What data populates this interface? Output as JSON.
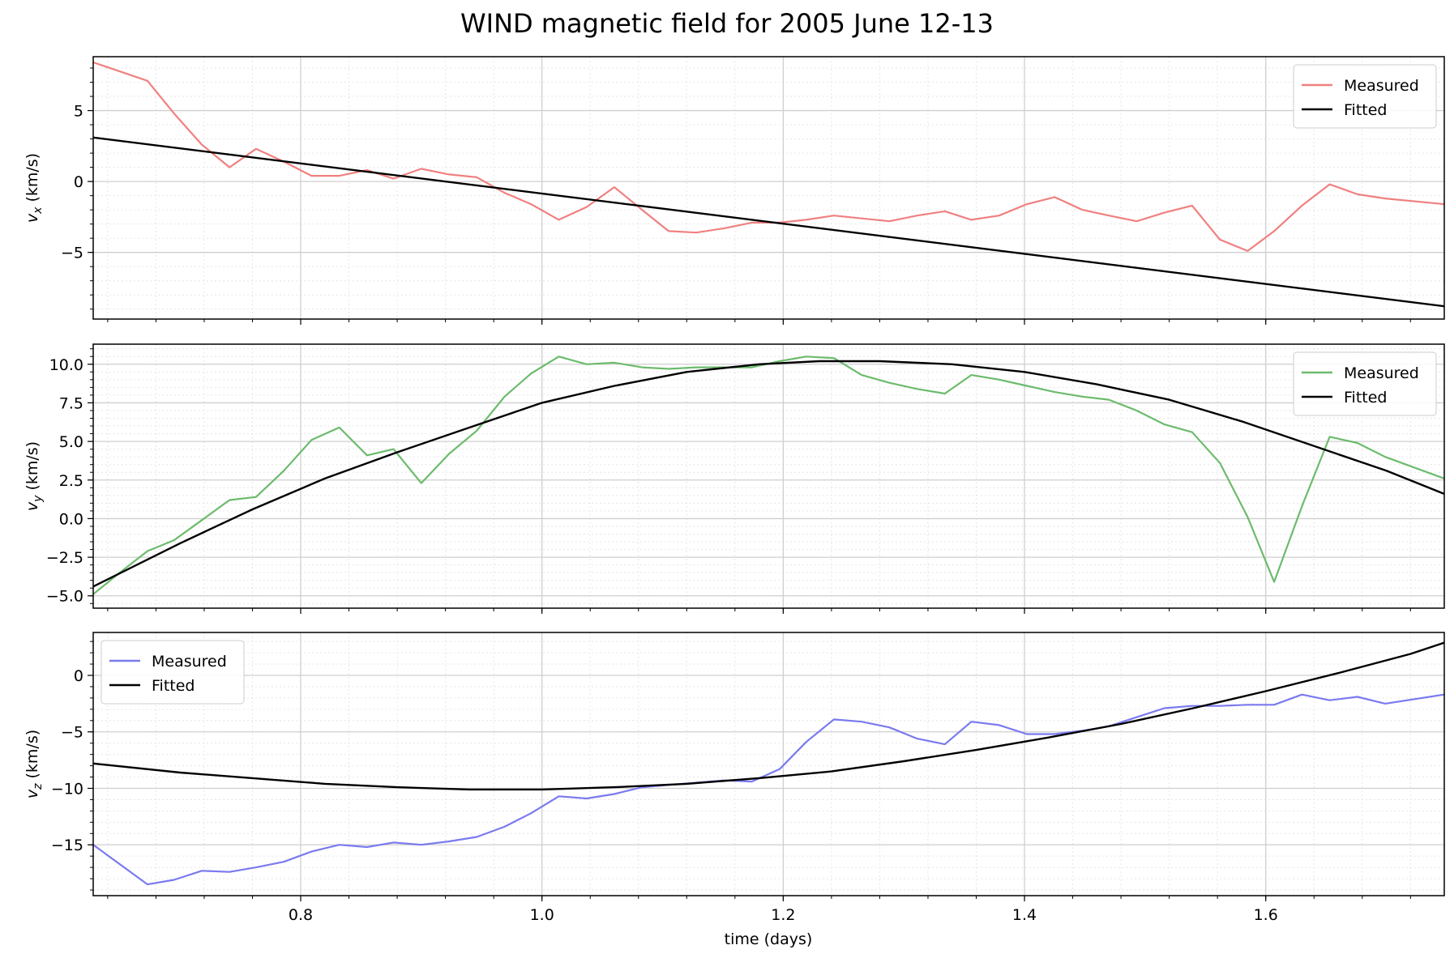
{
  "figure": {
    "title": "WIND magnetic field for 2005 June 12-13",
    "xlabel": "time (days)"
  },
  "chart_data": [
    {
      "type": "line",
      "panel": "vx",
      "ylabel_main": "v",
      "ylabel_sub": "x",
      "ylabel_unit": " (km/s)",
      "xlim": [
        0.628,
        1.748
      ],
      "ylim": [
        -9.7,
        8.8
      ],
      "xticks": [
        0.8,
        1.0,
        1.2,
        1.4,
        1.6
      ],
      "yticks": [
        5,
        0,
        -5
      ],
      "grid": true,
      "legend_position": "top-right",
      "show_xticklabels": false,
      "series": [
        {
          "name": "Measured",
          "color": "#f08080",
          "x": [
            0.628,
            0.673,
            0.695,
            0.718,
            0.741,
            0.763,
            0.786,
            0.809,
            0.832,
            0.855,
            0.877,
            0.9,
            0.923,
            0.946,
            0.969,
            0.991,
            1.014,
            1.037,
            1.06,
            1.083,
            1.105,
            1.128,
            1.151,
            1.174,
            1.197,
            1.219,
            1.242,
            1.265,
            1.288,
            1.311,
            1.334,
            1.356,
            1.379,
            1.402,
            1.425,
            1.448,
            1.47,
            1.493,
            1.516,
            1.539,
            1.562,
            1.585,
            1.607,
            1.63,
            1.653,
            1.676,
            1.699,
            1.748
          ],
          "y": [
            8.4,
            7.1,
            4.8,
            2.6,
            1.0,
            2.3,
            1.4,
            0.4,
            0.4,
            0.8,
            0.2,
            0.9,
            0.5,
            0.3,
            -0.8,
            -1.6,
            -2.7,
            -1.8,
            -0.4,
            -2.0,
            -3.5,
            -3.6,
            -3.3,
            -2.9,
            -2.9,
            -2.7,
            -2.4,
            -2.6,
            -2.8,
            -2.4,
            -2.1,
            -2.7,
            -2.4,
            -1.6,
            -1.1,
            -2.0,
            -2.4,
            -2.8,
            -2.2,
            -1.7,
            -4.1,
            -4.9,
            -3.5,
            -1.7,
            -0.2,
            -0.9,
            -1.2,
            -1.6
          ]
        },
        {
          "name": "Fitted",
          "color": "#000000",
          "x": [
            0.628,
            1.748
          ],
          "y": [
            3.1,
            -8.8
          ]
        }
      ]
    },
    {
      "type": "line",
      "panel": "vy",
      "ylabel_main": "v",
      "ylabel_sub": "y",
      "ylabel_unit": " (km/s)",
      "xlim": [
        0.628,
        1.748
      ],
      "ylim": [
        -5.8,
        11.3
      ],
      "xticks": [
        0.8,
        1.0,
        1.2,
        1.4,
        1.6
      ],
      "yticks": [
        10.0,
        7.5,
        5.0,
        2.5,
        0.0,
        -2.5,
        -5.0
      ],
      "grid": true,
      "legend_position": "top-right",
      "show_xticklabels": false,
      "series": [
        {
          "name": "Measured",
          "color": "#6cbb6c",
          "x": [
            0.628,
            0.65,
            0.673,
            0.695,
            0.718,
            0.741,
            0.763,
            0.786,
            0.809,
            0.832,
            0.855,
            0.877,
            0.9,
            0.923,
            0.946,
            0.969,
            0.991,
            1.014,
            1.037,
            1.06,
            1.083,
            1.105,
            1.128,
            1.151,
            1.174,
            1.197,
            1.219,
            1.242,
            1.265,
            1.288,
            1.311,
            1.334,
            1.356,
            1.379,
            1.402,
            1.425,
            1.448,
            1.47,
            1.493,
            1.516,
            1.539,
            1.562,
            1.585,
            1.607,
            1.63,
            1.653,
            1.676,
            1.699,
            1.748
          ],
          "y": [
            -4.9,
            -3.5,
            -2.1,
            -1.4,
            -0.1,
            1.2,
            1.4,
            3.1,
            5.1,
            5.9,
            4.1,
            4.5,
            2.3,
            4.2,
            5.7,
            7.9,
            9.4,
            10.5,
            10.0,
            10.1,
            9.8,
            9.7,
            9.8,
            9.8,
            9.8,
            10.2,
            10.5,
            10.4,
            9.3,
            8.8,
            8.4,
            8.1,
            9.3,
            9.0,
            8.6,
            8.2,
            7.9,
            7.7,
            7.0,
            6.1,
            5.6,
            3.6,
            0.1,
            -4.1,
            0.8,
            5.3,
            4.9,
            4.0,
            2.6
          ]
        },
        {
          "name": "Fitted",
          "color": "#000000",
          "x": [
            0.628,
            0.7,
            0.76,
            0.82,
            0.88,
            0.94,
            1.0,
            1.06,
            1.12,
            1.18,
            1.23,
            1.28,
            1.34,
            1.4,
            1.46,
            1.52,
            1.58,
            1.64,
            1.7,
            1.748
          ],
          "y": [
            -4.4,
            -1.6,
            0.6,
            2.6,
            4.3,
            5.9,
            7.5,
            8.6,
            9.5,
            10.0,
            10.2,
            10.2,
            10.0,
            9.5,
            8.7,
            7.7,
            6.3,
            4.7,
            3.1,
            1.6
          ]
        }
      ]
    },
    {
      "type": "line",
      "panel": "vz",
      "ylabel_main": "v",
      "ylabel_sub": "z",
      "ylabel_unit": " (km/s)",
      "xlim": [
        0.628,
        1.748
      ],
      "ylim": [
        -19.5,
        3.8
      ],
      "xticks": [
        0.8,
        1.0,
        1.2,
        1.4,
        1.6
      ],
      "yticks": [
        0,
        -5,
        -10,
        -15
      ],
      "grid": true,
      "legend_position": "top-left",
      "show_xticklabels": true,
      "series": [
        {
          "name": "Measured",
          "color": "#7a7af0",
          "x": [
            0.628,
            0.673,
            0.695,
            0.718,
            0.741,
            0.763,
            0.786,
            0.809,
            0.832,
            0.855,
            0.877,
            0.9,
            0.923,
            0.946,
            0.969,
            0.991,
            1.014,
            1.037,
            1.06,
            1.083,
            1.105,
            1.128,
            1.151,
            1.174,
            1.197,
            1.219,
            1.242,
            1.265,
            1.288,
            1.311,
            1.334,
            1.356,
            1.379,
            1.402,
            1.425,
            1.448,
            1.47,
            1.493,
            1.516,
            1.539,
            1.562,
            1.585,
            1.607,
            1.63,
            1.653,
            1.676,
            1.699,
            1.748
          ],
          "y": [
            -15.0,
            -18.5,
            -18.1,
            -17.3,
            -17.4,
            -17.0,
            -16.5,
            -15.6,
            -15.0,
            -15.2,
            -14.8,
            -15.0,
            -14.7,
            -14.3,
            -13.4,
            -12.2,
            -10.7,
            -10.9,
            -10.5,
            -9.9,
            -9.7,
            -9.5,
            -9.3,
            -9.4,
            -8.3,
            -5.9,
            -3.9,
            -4.1,
            -4.6,
            -5.6,
            -6.1,
            -4.1,
            -4.4,
            -5.2,
            -5.2,
            -4.9,
            -4.5,
            -3.7,
            -2.9,
            -2.7,
            -2.7,
            -2.6,
            -2.6,
            -1.7,
            -2.2,
            -1.9,
            -2.5,
            -1.7
          ]
        },
        {
          "name": "Fitted",
          "color": "#000000",
          "x": [
            0.628,
            0.7,
            0.76,
            0.82,
            0.88,
            0.94,
            0.97,
            1.0,
            1.06,
            1.12,
            1.18,
            1.24,
            1.3,
            1.36,
            1.42,
            1.48,
            1.54,
            1.6,
            1.66,
            1.72,
            1.748
          ],
          "y": [
            -7.8,
            -8.6,
            -9.1,
            -9.6,
            -9.9,
            -10.1,
            -10.1,
            -10.1,
            -9.9,
            -9.6,
            -9.1,
            -8.5,
            -7.6,
            -6.6,
            -5.5,
            -4.3,
            -2.9,
            -1.4,
            0.2,
            1.9,
            2.9
          ]
        }
      ]
    }
  ]
}
